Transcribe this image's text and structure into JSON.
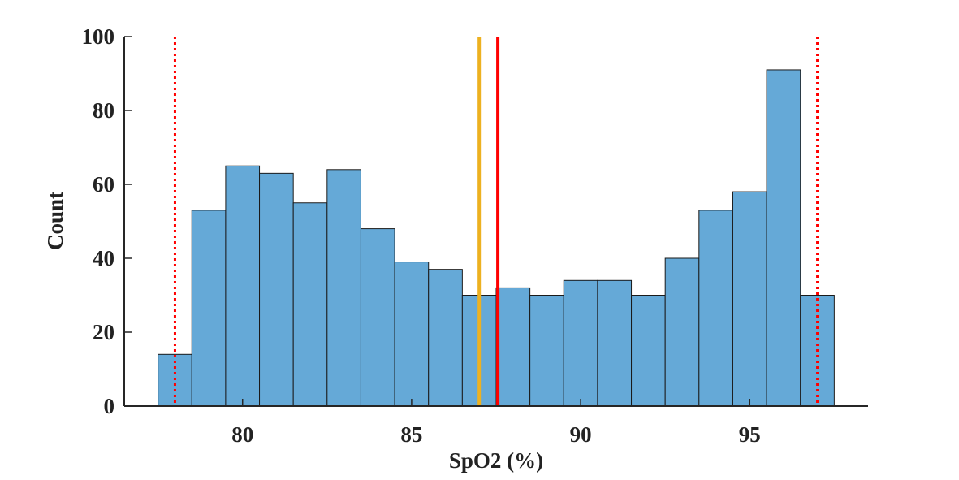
{
  "chart_data": {
    "type": "histogram",
    "xlabel": "SpO2 (%)",
    "ylabel": "Count",
    "bins": [
      77.5,
      78.5,
      79.5,
      80.5,
      81.5,
      82.5,
      83.5,
      84.5,
      85.5,
      86.5,
      87.5,
      88.5,
      89.5,
      90.5,
      91.5,
      92.5,
      93.5,
      94.5,
      95.5,
      96.5,
      97.5
    ],
    "values": [
      14,
      53,
      65,
      63,
      55,
      64,
      48,
      39,
      37,
      30,
      32,
      30,
      34,
      34,
      30,
      40,
      53,
      58,
      91,
      30
    ],
    "color": "#65a9d7",
    "xlim": [
      76.5,
      98.5
    ],
    "xticks": [
      80,
      85,
      90,
      95
    ],
    "ylim": [
      0,
      100
    ],
    "yticks": [
      0,
      20,
      40,
      60,
      80,
      100
    ],
    "reference_lines": [
      {
        "value": 78,
        "color": "#ff0000",
        "style": "dotted"
      },
      {
        "value": 97,
        "color": "#ff0000",
        "style": "dotted"
      },
      {
        "value": 87,
        "color": "#edb120",
        "style": "solid"
      },
      {
        "value": 87.55,
        "color": "#ff0000",
        "style": "solid"
      }
    ]
  }
}
